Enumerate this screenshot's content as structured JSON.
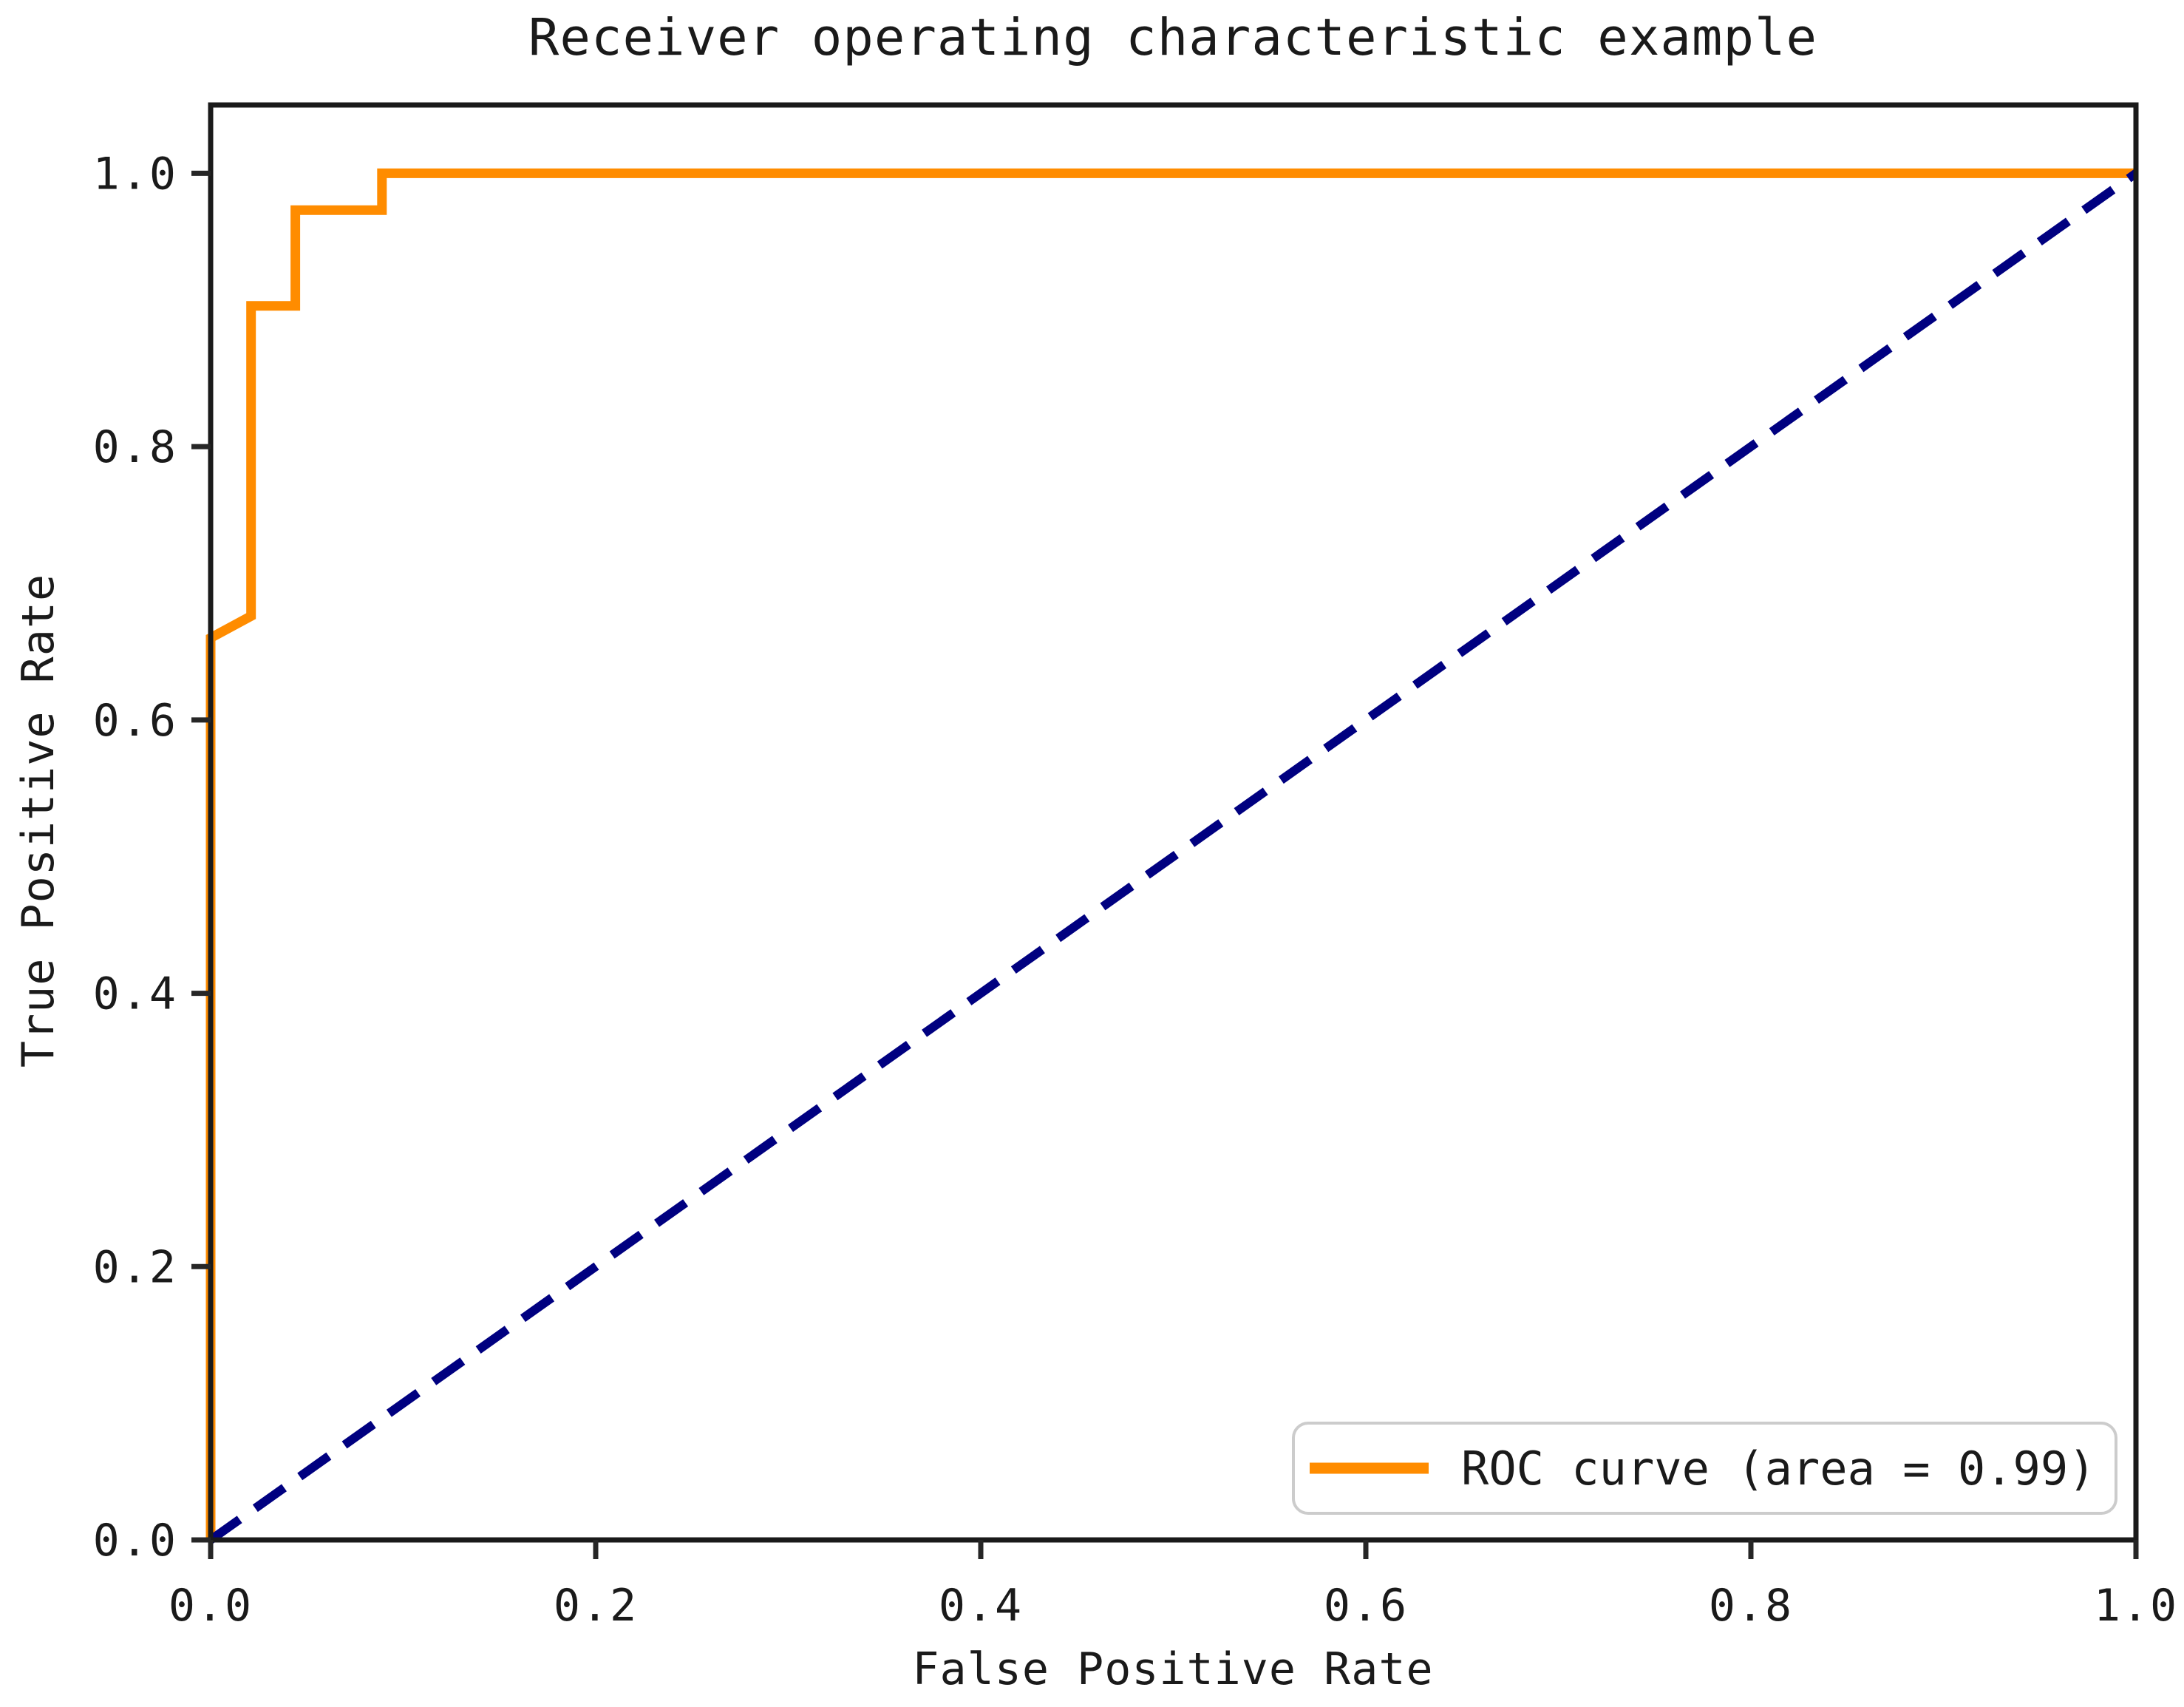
{
  "figure": {
    "background": "#ffffff"
  },
  "chart_data": {
    "type": "line",
    "title": "Receiver operating characteristic example",
    "xlabel": "False Positive Rate",
    "ylabel": "True Positive Rate",
    "xlim": [
      0.0,
      1.0
    ],
    "ylim": [
      0.0,
      1.05
    ],
    "xticks": [
      "0.0",
      "0.2",
      "0.4",
      "0.6",
      "0.8",
      "1.0"
    ],
    "yticks": [
      "0.0",
      "0.2",
      "0.4",
      "0.6",
      "0.8",
      "1.0"
    ],
    "grid": false,
    "legend": {
      "position": "lower right",
      "entries": [
        {
          "label": "ROC curve (area = 0.99)",
          "color": "#ff8c00",
          "linestyle": "solid"
        }
      ]
    },
    "series": [
      {
        "name": "ROC curve",
        "color": "#ff8c00",
        "linestyle": "solid",
        "area": 0.99,
        "points": [
          [
            0.0,
            0.0
          ],
          [
            0.0,
            0.66
          ],
          [
            0.021,
            0.676
          ],
          [
            0.021,
            0.903
          ],
          [
            0.044,
            0.903
          ],
          [
            0.044,
            0.973
          ],
          [
            0.089,
            0.973
          ],
          [
            0.089,
            1.0
          ],
          [
            1.0,
            1.0
          ]
        ]
      },
      {
        "name": "chance diagonal",
        "color": "#000080",
        "linestyle": "dashed",
        "points": [
          [
            0.0,
            0.0
          ],
          [
            1.0,
            1.0
          ]
        ]
      }
    ]
  },
  "colors": {
    "spine": "#1a1a1a",
    "tick": "#262626",
    "text": "#1a1a1a",
    "legend_border": "#cccccc",
    "legend_background": "#ffffff",
    "roc_curve": "#ff8c00",
    "chance_line": "#000080"
  }
}
